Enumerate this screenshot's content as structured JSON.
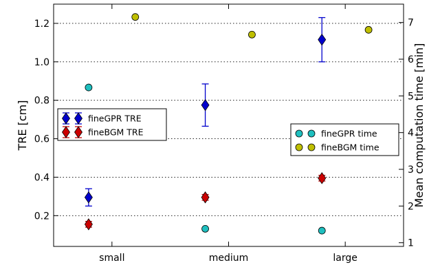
{
  "chart_data": {
    "type": "scatter",
    "categories": [
      "small",
      "medium",
      "large"
    ],
    "xlim": [
      -0.5,
      2.5
    ],
    "left_axis": {
      "ylabel": "TRE [cm]",
      "ylim": [
        0.04,
        1.3
      ],
      "ticks": [
        0.2,
        0.4,
        0.6,
        0.8,
        1.0,
        1.2
      ],
      "tick_labels": [
        "0.2",
        "0.4",
        "0.6",
        "0.8",
        "1.0",
        "1.2"
      ]
    },
    "right_axis": {
      "ylabel": "Mean computation time [min]",
      "ylim": [
        0.9,
        7.5
      ],
      "ticks": [
        1,
        2,
        3,
        4,
        5,
        6,
        7
      ],
      "tick_labels": [
        "1",
        "2",
        "3",
        "4",
        "5",
        "6",
        "7"
      ]
    },
    "grid": "horizontal-dotted",
    "series": [
      {
        "name": "fineGPR TRE",
        "axis": "left",
        "marker": "diamond",
        "color": "#0000cc",
        "x": [
          -0.2,
          0.8,
          1.8
        ],
        "values": [
          0.295,
          0.775,
          1.115
        ],
        "errors": [
          0.045,
          0.11,
          0.115
        ]
      },
      {
        "name": "fineBGM TRE",
        "axis": "left",
        "marker": "diamond",
        "color": "#cc0000",
        "x": [
          -0.2,
          0.8,
          1.8
        ],
        "values": [
          0.155,
          0.295,
          0.395
        ],
        "errors": [
          0.015,
          0.015,
          0.015
        ]
      },
      {
        "name": "fineGPR time",
        "axis": "right",
        "marker": "circle",
        "color": "#1fbfbf",
        "x": [
          -0.2,
          0.8,
          1.8
        ],
        "values": [
          5.23,
          1.38,
          1.33
        ]
      },
      {
        "name": "fineBGM time",
        "axis": "right",
        "marker": "circle",
        "color": "#bfbf00",
        "x": [
          0.2,
          1.2,
          2.2
        ],
        "values": [
          7.15,
          6.67,
          6.8
        ]
      }
    ],
    "legends": [
      {
        "placement": "center-left",
        "entries": [
          "fineGPR TRE",
          "fineBGM TRE"
        ]
      },
      {
        "placement": "center-right",
        "entries": [
          "fineGPR time",
          "fineBGM time"
        ]
      }
    ]
  }
}
